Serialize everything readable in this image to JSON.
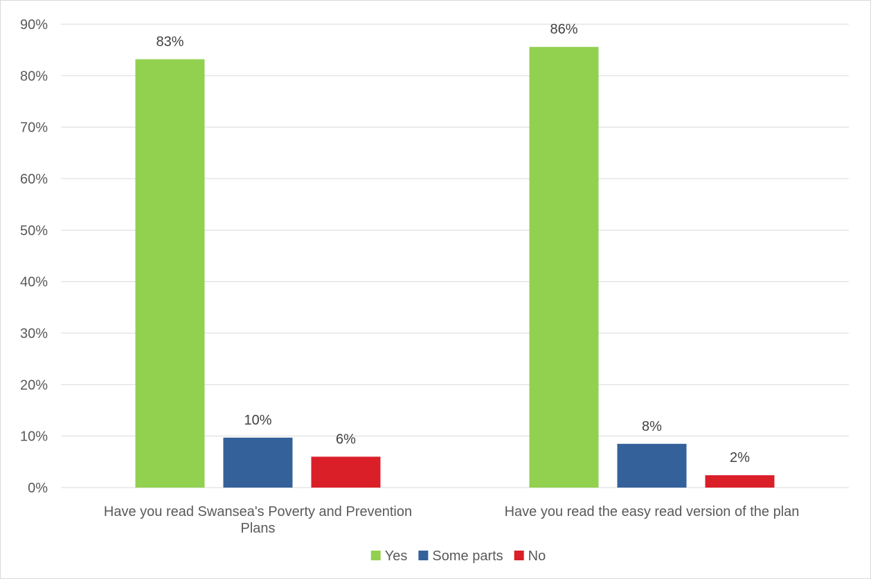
{
  "chart_data": {
    "type": "bar",
    "title": "",
    "xlabel": "",
    "ylabel": "",
    "categories": [
      [
        "Have you read Swansea's Poverty and Prevention",
        "Plans"
      ],
      [
        "Have you read the easy read version of the plan"
      ]
    ],
    "series": [
      {
        "name": "Yes",
        "color": "#92d050",
        "values": [
          83.2,
          85.6
        ],
        "labels": [
          "83%",
          "86%"
        ]
      },
      {
        "name": "Some parts",
        "color": "#35619b",
        "values": [
          9.7,
          8.5
        ],
        "labels": [
          "10%",
          "8%"
        ]
      },
      {
        "name": "No",
        "color": "#da1f28",
        "values": [
          6.0,
          2.4
        ],
        "labels": [
          "6%",
          "2%"
        ]
      }
    ],
    "ylim": [
      0,
      90
    ],
    "yticks": [
      0,
      10,
      20,
      30,
      40,
      50,
      60,
      70,
      80,
      90
    ],
    "ytick_labels": [
      "0%",
      "10%",
      "20%",
      "30%",
      "40%",
      "50%",
      "60%",
      "70%",
      "80%",
      "90%"
    ],
    "grid": true,
    "legend_position": "bottom"
  }
}
